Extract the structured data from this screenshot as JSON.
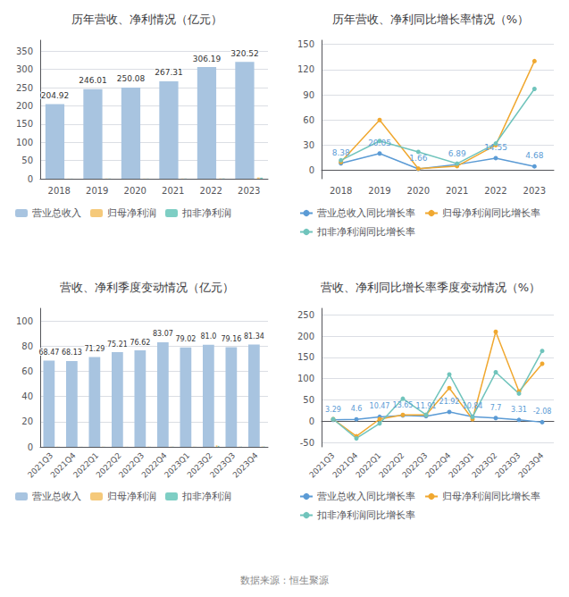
{
  "chart_data": [
    {
      "type": "bar",
      "title": "历年营收、净利情况（亿元）",
      "categories": [
        "2018",
        "2019",
        "2020",
        "2021",
        "2022",
        "2023"
      ],
      "series": [
        {
          "name": "营业总收入",
          "color": "#a8c4e0",
          "values": [
            204.92,
            246.01,
            250.08,
            267.31,
            306.19,
            320.52
          ],
          "data_labels": true
        },
        {
          "name": "归母净利润",
          "color": "#f5c97a",
          "values": [
            0.3,
            0.5,
            0.4,
            0.6,
            0.8,
            3.5
          ]
        },
        {
          "name": "扣非净利润",
          "color": "#7ecec4",
          "values": [
            0.3,
            0.5,
            0.4,
            0.6,
            0.8,
            3.0
          ]
        }
      ],
      "ylim": [
        0,
        380
      ],
      "yticks": [
        0,
        50,
        100,
        150,
        200,
        250,
        300,
        350
      ],
      "grid": true,
      "legend": "bottom"
    },
    {
      "type": "line",
      "title": "历年营收、净利同比增长率情况（%）",
      "x": [
        2018,
        2019,
        2020,
        2021,
        2022,
        2023
      ],
      "xlim": [
        2017.5,
        2023.5
      ],
      "xticks": [
        2018,
        2019,
        2020,
        2021,
        2022,
        2023
      ],
      "series": [
        {
          "name": "营业总收入同比增长率",
          "color": "#5b9bd5",
          "values": [
            8.38,
            20.05,
            1.66,
            6.89,
            14.55,
            4.68
          ],
          "marker": "circle",
          "line_style": "solid",
          "data_labels": true
        },
        {
          "name": "归母净利润同比增长率",
          "color": "#f0a830",
          "values": [
            10.0,
            60.0,
            2.0,
            5.0,
            30.0,
            130.09
          ],
          "marker": "circle",
          "line_style": "solid"
        },
        {
          "name": "扣非净利润同比增长率",
          "color": "#70c4bc",
          "values": [
            12.0,
            35.0,
            22.0,
            8.0,
            32.0,
            97.0
          ],
          "marker": "circle",
          "line_style": "solid"
        }
      ],
      "ylim": [
        -10,
        155
      ],
      "yticks": [
        0,
        30,
        60,
        90,
        120,
        150
      ],
      "grid": true,
      "legend": "bottom"
    },
    {
      "type": "bar",
      "title": "营收、净利季度变动情况（亿元）",
      "categories": [
        "2021Q3",
        "2021Q4",
        "2022Q1",
        "2022Q2",
        "2022Q3",
        "2022Q4",
        "2023Q1",
        "2023Q2",
        "2023Q3",
        "2023Q4"
      ],
      "series": [
        {
          "name": "营业总收入",
          "color": "#a8c4e0",
          "values": [
            68.47,
            68.13,
            71.29,
            75.21,
            76.62,
            83.07,
            79.02,
            81.0,
            79.16,
            81.34
          ],
          "value_labels": [
            "68.47",
            "68.13",
            "71.29",
            "75.21",
            "76.62",
            "83.07",
            "79.02",
            "81.0",
            "79.16",
            "81.34"
          ],
          "data_labels": true
        },
        {
          "name": "归母净利润",
          "color": "#f5c97a",
          "values": [
            0.1,
            0.1,
            0.1,
            0.1,
            0.1,
            0.2,
            0.1,
            1.2,
            0.2,
            0.3
          ]
        },
        {
          "name": "扣非净利润",
          "color": "#7ecec4",
          "values": [
            0.1,
            0.1,
            0.1,
            0.1,
            0.1,
            0.2,
            0.1,
            0.8,
            0.2,
            0.3
          ]
        }
      ],
      "ylim": [
        0,
        110
      ],
      "yticks": [
        0,
        20,
        40,
        60,
        80,
        100
      ],
      "grid": true,
      "legend": "bottom"
    },
    {
      "type": "line",
      "title": "营收、净利同比增长率季度变动情况（%）",
      "categories": [
        "2021Q3",
        "2021Q4",
        "2022Q1",
        "2022Q2",
        "2022Q3",
        "2022Q4",
        "2023Q1",
        "2023Q2",
        "2023Q3",
        "2023Q4"
      ],
      "series": [
        {
          "name": "营业总收入同比增长率",
          "color": "#5b9bd5",
          "values": [
            3.29,
            4.6,
            10.47,
            13.65,
            11.91,
            21.92,
            10.84,
            7.7,
            3.31,
            -2.08
          ],
          "marker": "circle",
          "line_style": "solid",
          "data_labels": true
        },
        {
          "name": "归母净利润同比增长率",
          "color": "#f0a830",
          "values": [
            5.0,
            -35.0,
            5.0,
            15.0,
            15.0,
            78.0,
            5.0,
            210.0,
            70.0,
            135.0
          ],
          "marker": "circle",
          "line_style": "solid"
        },
        {
          "name": "扣非净利润同比增长率",
          "color": "#70c4bc",
          "values": [
            5.0,
            -40.0,
            -5.0,
            53.0,
            15.0,
            110.0,
            10.0,
            115.0,
            65.0,
            165.0
          ],
          "marker": "circle",
          "line_style": "solid"
        }
      ],
      "ylim": [
        -60,
        265
      ],
      "yticks": [
        -50,
        0,
        50,
        100,
        150,
        200,
        250
      ],
      "grid": true,
      "legend": "bottom"
    }
  ],
  "footer": "数据来源：恒生聚源"
}
